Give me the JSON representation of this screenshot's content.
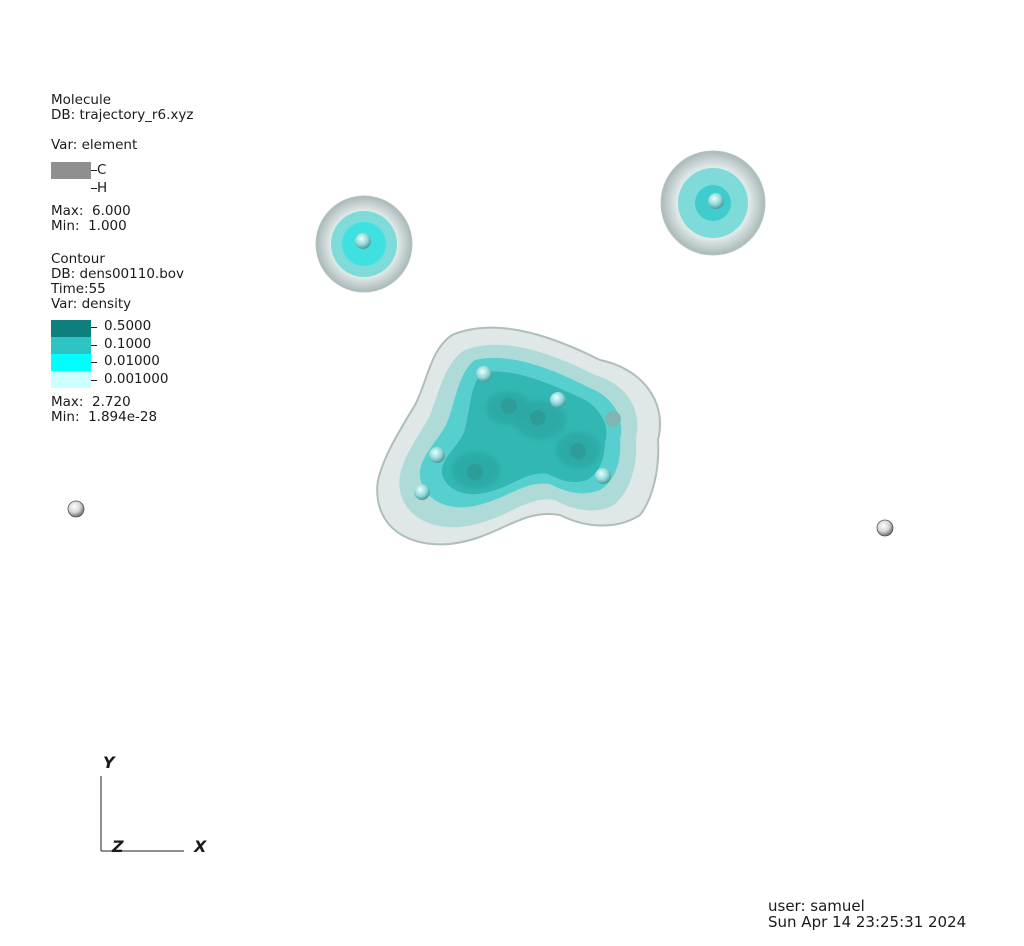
{
  "molecule_legend": {
    "title": "Molecule",
    "db": "DB: trajectory_r6.xyz",
    "var": "Var: element",
    "entries": [
      {
        "label": "C",
        "color": "#8f8f8f"
      },
      {
        "label": "H",
        "color": "#ffffff"
      }
    ],
    "max": "Max:  6.000",
    "min": "Min:  1.000"
  },
  "contour_legend": {
    "title": "Contour",
    "db": "DB: dens00110.bov",
    "time": "Time:55",
    "var": "Var: density",
    "levels": [
      {
        "label": "0.5000",
        "color": "#0e7f7f"
      },
      {
        "label": "0.1000",
        "color": "#2fc4c4"
      },
      {
        "label": "0.01000",
        "color": "#00ffff"
      },
      {
        "label": "0.001000",
        "color": "#ccffff"
      }
    ],
    "max": "Max:  2.720",
    "min": "Min:  1.894e-28"
  },
  "axes": {
    "x": "X",
    "y": "Y",
    "z": "Z"
  },
  "footer": {
    "user": "user: samuel",
    "timestamp": "Sun Apr 14 23:25:31 2024"
  }
}
